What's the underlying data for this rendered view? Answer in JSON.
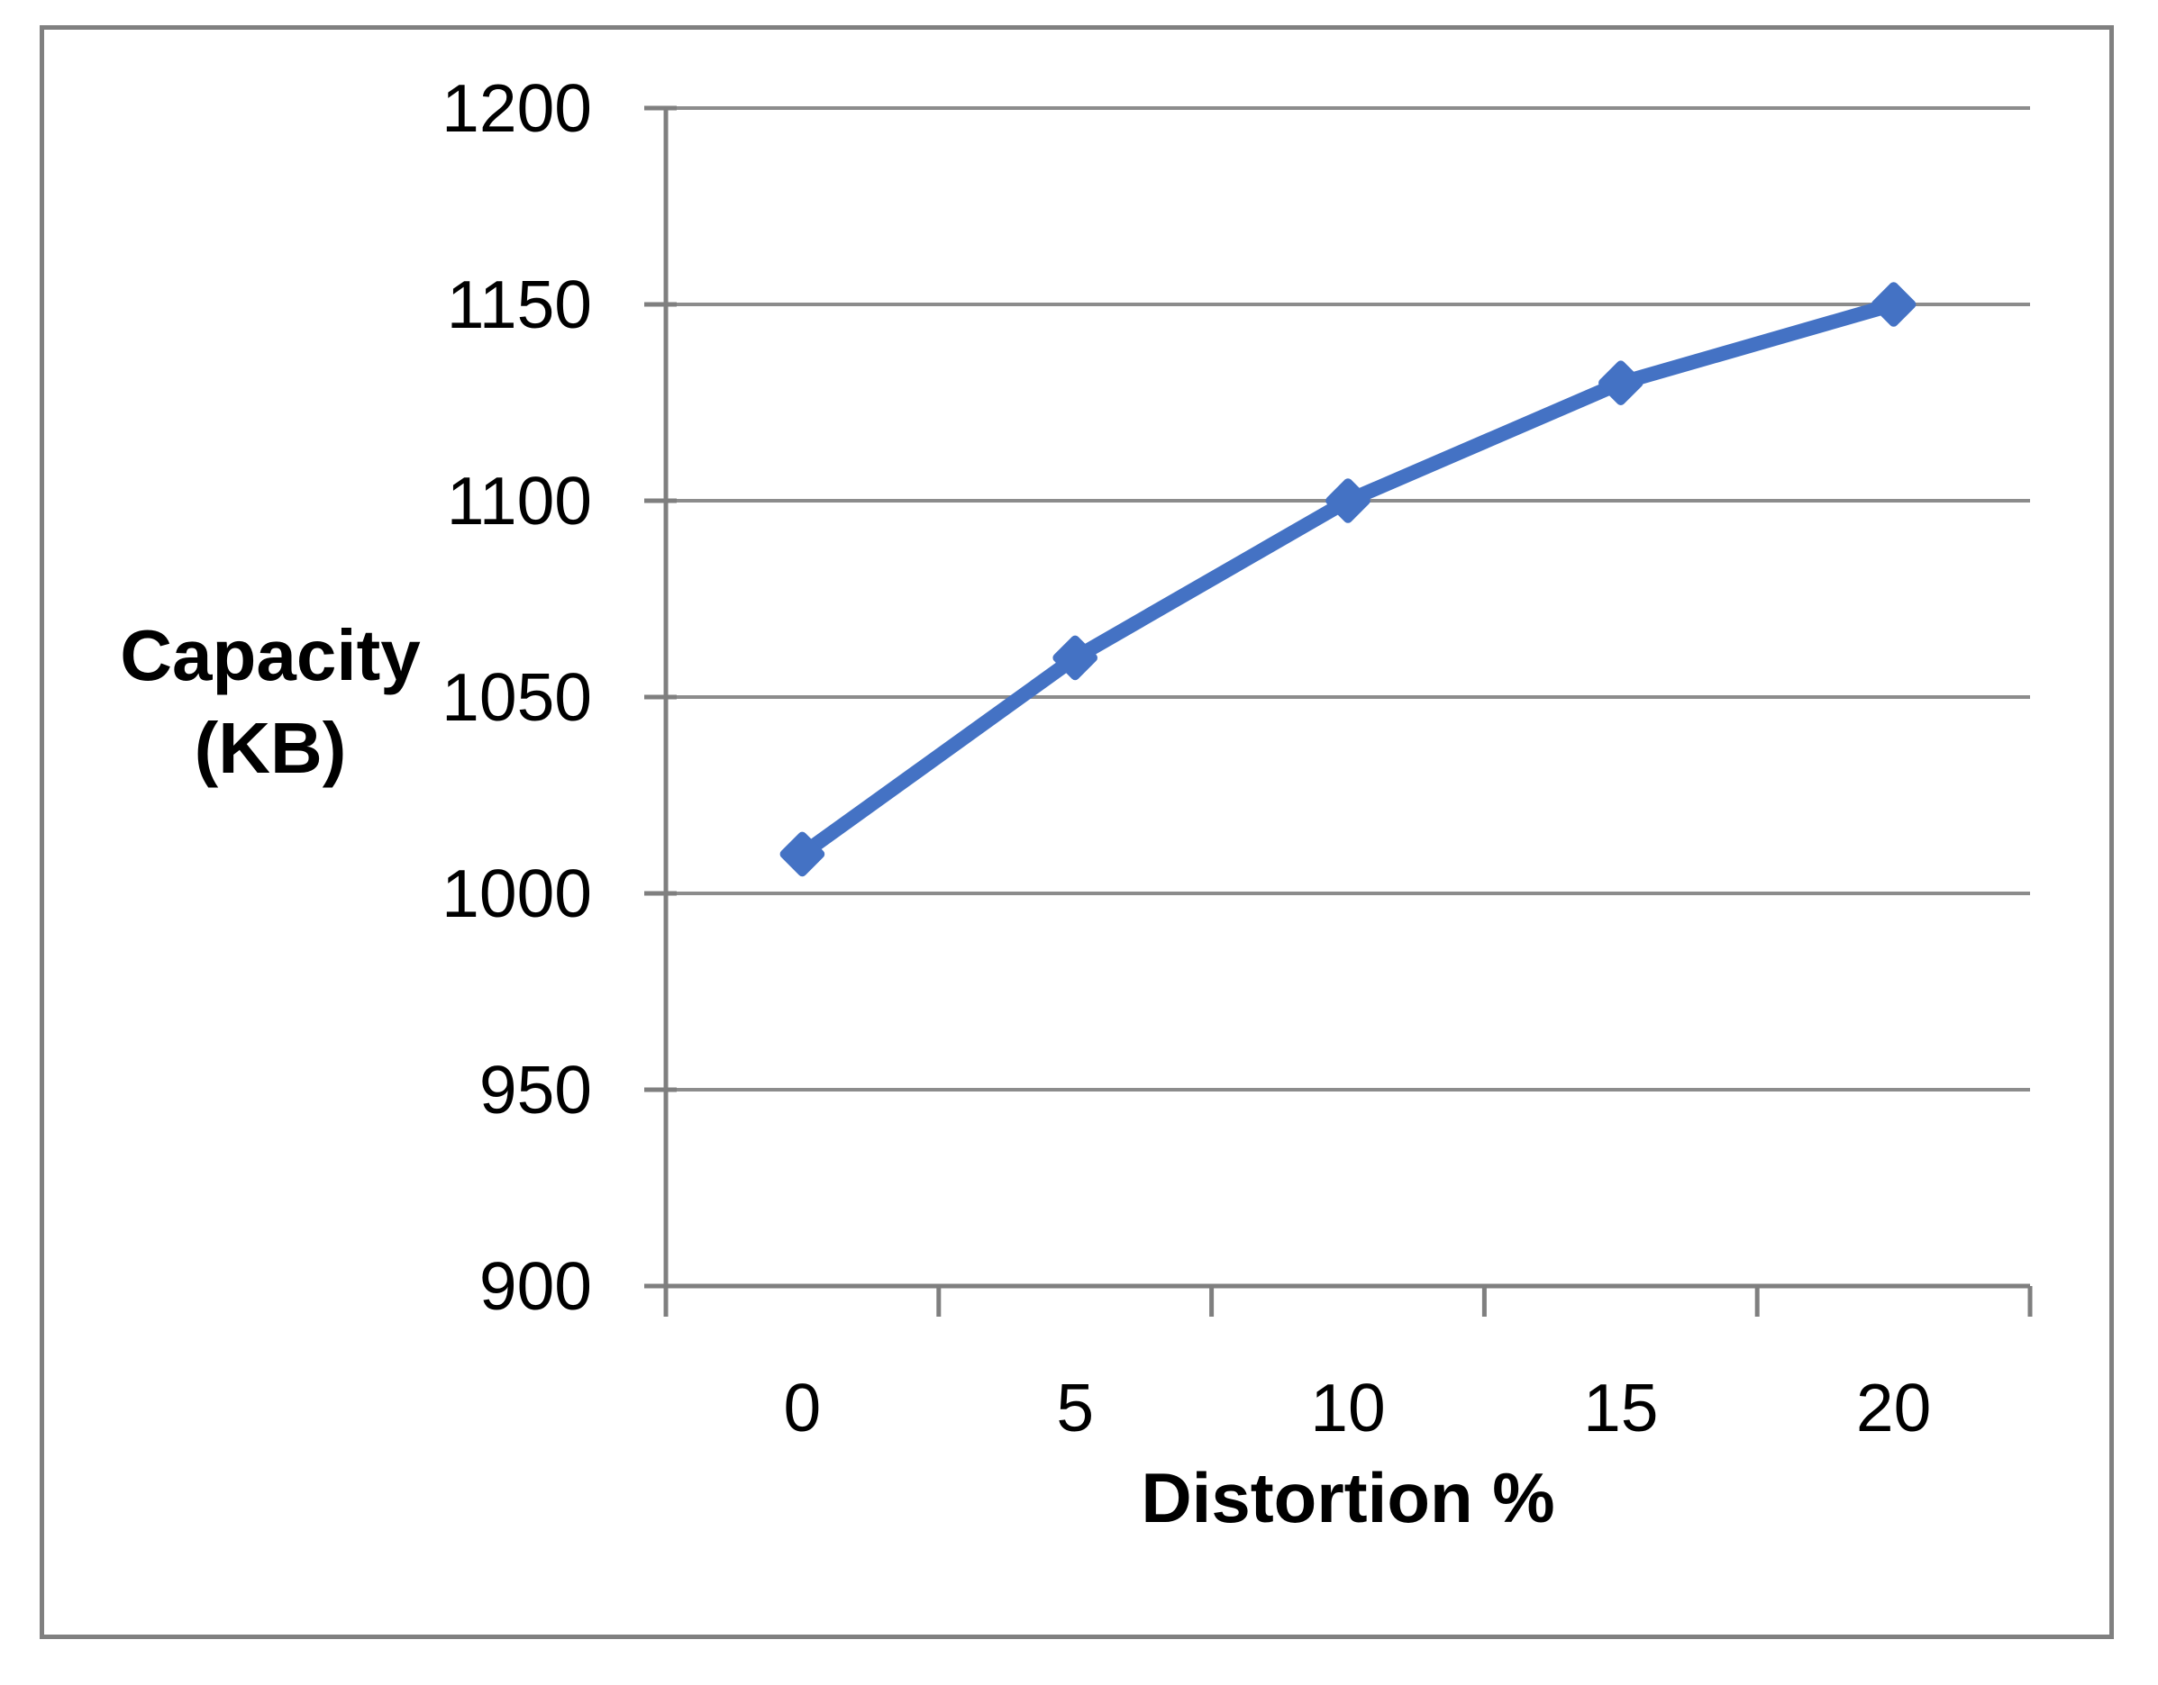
{
  "chart_data": {
    "type": "line",
    "title": "",
    "categories": [
      "0",
      "5",
      "10",
      "15",
      "20"
    ],
    "series": [
      {
        "name": "Capacity",
        "values": [
          1010,
          1060,
          1100,
          1130,
          1150
        ]
      }
    ],
    "xlabel": "Distortion %",
    "ylabel": "Capacity (KB)",
    "ylabel_lines": [
      "Capacity",
      "(KB)"
    ],
    "ylim": [
      900,
      1200
    ],
    "yticks": [
      900,
      950,
      1000,
      1050,
      1100,
      1150,
      1200
    ],
    "grid": true,
    "legend_position": "none",
    "marker": "diamond",
    "colors": {
      "line": "#4472C4",
      "gridline": "#8C8C8C",
      "axis": "#7F7F7F",
      "border": "#808080",
      "text": "#000000",
      "background": "#FFFFFF"
    }
  }
}
